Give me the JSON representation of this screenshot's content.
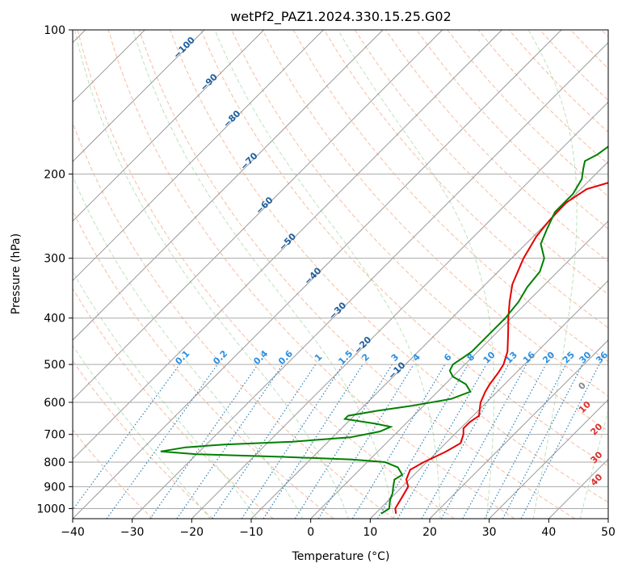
{
  "chart_data": {
    "type": "line",
    "title": "wetPf2_PAZ1.2024.330.15.25.G02",
    "xlabel": "Temperature (°C)",
    "ylabel": "Pressure (hPa)",
    "xlim": [
      -40,
      50
    ],
    "ylim": [
      1050,
      100
    ],
    "y_scale": "log",
    "grid": true,
    "x_ticks": [
      "−40",
      "−30",
      "−20",
      "−10",
      "0",
      "10",
      "20",
      "30",
      "40",
      "50"
    ],
    "y_ticks": [
      {
        "p": 100,
        "label": "100"
      },
      {
        "p": 200,
        "label": "200"
      },
      {
        "p": 300,
        "label": "300"
      },
      {
        "p": 400,
        "label": "400"
      },
      {
        "p": 500,
        "label": "500"
      },
      {
        "p": 600,
        "label": "600"
      },
      {
        "p": 700,
        "label": "700"
      },
      {
        "p": 800,
        "label": "800"
      },
      {
        "p": 900,
        "label": "900"
      },
      {
        "p": 1000,
        "label": "1000"
      }
    ],
    "series": [
      {
        "color": "#e50000",
        "points": [
          [
            1025,
            13.5
          ],
          [
            1000,
            12.5
          ],
          [
            950,
            11.8
          ],
          [
            900,
            11.0
          ],
          [
            870,
            9.5
          ],
          [
            830,
            8.5
          ],
          [
            800,
            9.5
          ],
          [
            780,
            10.5
          ],
          [
            760,
            11.5
          ],
          [
            730,
            12.5
          ],
          [
            700,
            11.5
          ],
          [
            680,
            10.5
          ],
          [
            660,
            10.5
          ],
          [
            640,
            11.0
          ],
          [
            620,
            10.0
          ],
          [
            600,
            9.0
          ],
          [
            570,
            8.0
          ],
          [
            550,
            7.5
          ],
          [
            520,
            7.0
          ],
          [
            500,
            6.5
          ],
          [
            470,
            5.0
          ],
          [
            430,
            2.0
          ],
          [
            400,
            -0.5
          ],
          [
            370,
            -3.0
          ],
          [
            340,
            -5.5
          ],
          [
            300,
            -8.0
          ],
          [
            270,
            -9.5
          ],
          [
            250,
            -10.0
          ],
          [
            230,
            -10.2
          ],
          [
            215,
            -9.0
          ],
          [
            205,
            -5.0
          ],
          [
            195,
            0.0
          ],
          [
            180,
            5.0
          ],
          [
            165,
            8.0
          ],
          [
            150,
            10.0
          ],
          [
            135,
            12.0
          ],
          [
            125,
            14.0
          ],
          [
            115,
            16.0
          ],
          [
            105,
            19.5
          ],
          [
            100,
            21.0
          ]
        ]
      },
      {
        "color": "#007f00",
        "points": [
          [
            1025,
            11.0
          ],
          [
            1000,
            11.5
          ],
          [
            960,
            10.2
          ],
          [
            930,
            9.5
          ],
          [
            900,
            8.5
          ],
          [
            870,
            7.5
          ],
          [
            850,
            8.0
          ],
          [
            820,
            6.0
          ],
          [
            800,
            3.0
          ],
          [
            790,
            -3.0
          ],
          [
            780,
            -15.0
          ],
          [
            770,
            -30.0
          ],
          [
            760,
            -36.5
          ],
          [
            745,
            -33.0
          ],
          [
            735,
            -27.0
          ],
          [
            725,
            -16.0
          ],
          [
            710,
            -7.0
          ],
          [
            690,
            -3.0
          ],
          [
            675,
            -2.0
          ],
          [
            665,
            -5.0
          ],
          [
            650,
            -11.0
          ],
          [
            640,
            -11.0
          ],
          [
            625,
            -7.0
          ],
          [
            610,
            -2.0
          ],
          [
            590,
            3.5
          ],
          [
            570,
            5.5
          ],
          [
            550,
            3.5
          ],
          [
            530,
            0.0
          ],
          [
            515,
            -1.5
          ],
          [
            500,
            -2.0
          ],
          [
            485,
            -1.5
          ],
          [
            470,
            -1.0
          ],
          [
            440,
            -1.0
          ],
          [
            420,
            -1.0
          ],
          [
            400,
            -1.0
          ],
          [
            370,
            -1.5
          ],
          [
            345,
            -2.5
          ],
          [
            320,
            -3.0
          ],
          [
            300,
            -4.5
          ],
          [
            280,
            -7.5
          ],
          [
            260,
            -9.0
          ],
          [
            240,
            -10.5
          ],
          [
            220,
            -10.5
          ],
          [
            205,
            -11.5
          ],
          [
            195,
            -13.0
          ],
          [
            188,
            -14.0
          ],
          [
            182,
            -13.0
          ],
          [
            175,
            -12.5
          ],
          [
            165,
            -12.5
          ],
          [
            158,
            -13.5
          ],
          [
            150,
            -12.0
          ],
          [
            142,
            -9.0
          ],
          [
            135,
            -7.0
          ],
          [
            128,
            -6.5
          ],
          [
            120,
            -6.0
          ],
          [
            110,
            -4.0
          ],
          [
            100,
            0.0
          ]
        ]
      }
    ],
    "isotherm_labels": [
      "−100",
      "−90",
      "−80",
      "−70",
      "−60",
      "−50",
      "−40",
      "−30",
      "−20",
      "−10"
    ],
    "mixing_ratio_labels": [
      "0.1",
      "0.2",
      "0.4",
      "0.6",
      "1",
      "1.5",
      "2",
      "3",
      "4",
      "6",
      "8",
      "10",
      "13",
      "16",
      "20",
      "25",
      "30",
      "36"
    ],
    "moist_adiabat_labels": [
      "0",
      "10",
      "20",
      "30",
      "40"
    ]
  }
}
